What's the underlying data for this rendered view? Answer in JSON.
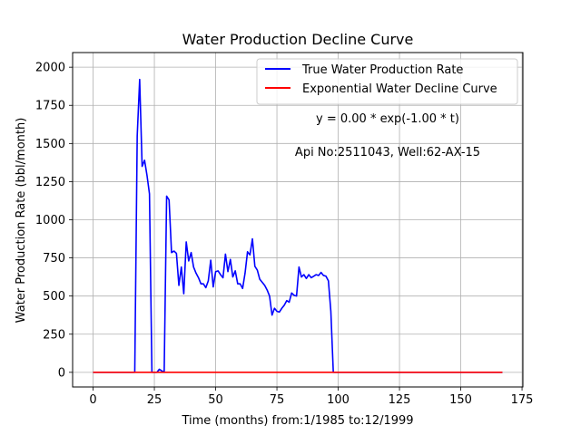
{
  "chart_data": {
    "type": "line",
    "title": "Water Production Decline Curve",
    "xlabel": "Time (months) from:1/1985 to:12/1999",
    "ylabel": "Water Production Rate (bbl/month)",
    "xlim": [
      -8.35,
      175.35
    ],
    "ylim": [
      -96,
      2096
    ],
    "xticks": [
      0,
      25,
      50,
      75,
      100,
      125,
      150,
      175
    ],
    "yticks": [
      0,
      250,
      500,
      750,
      1000,
      1250,
      1500,
      1750,
      2000
    ],
    "grid": true,
    "legend_position": "top-right",
    "annotations": [
      "y = 0.00 * exp(-1.00 * t)",
      "Api No:2511043, Well:62-AX-15"
    ],
    "series": [
      {
        "name": "True Water Production Rate",
        "color": "#0000ff",
        "points": [
          [
            0,
            0
          ],
          [
            1,
            0
          ],
          [
            2,
            0
          ],
          [
            3,
            0
          ],
          [
            4,
            0
          ],
          [
            5,
            0
          ],
          [
            6,
            0
          ],
          [
            7,
            0
          ],
          [
            8,
            0
          ],
          [
            9,
            0
          ],
          [
            10,
            0
          ],
          [
            11,
            0
          ],
          [
            12,
            0
          ],
          [
            13,
            0
          ],
          [
            14,
            0
          ],
          [
            15,
            0
          ],
          [
            16,
            0
          ],
          [
            17,
            0
          ],
          [
            18,
            1550
          ],
          [
            19,
            1920
          ],
          [
            20,
            1350
          ],
          [
            21,
            1390
          ],
          [
            22,
            1290
          ],
          [
            23,
            1170
          ],
          [
            24,
            0
          ],
          [
            25,
            0
          ],
          [
            26,
            0
          ],
          [
            27,
            20
          ],
          [
            28,
            10
          ],
          [
            29,
            0
          ],
          [
            30,
            1155
          ],
          [
            31,
            1130
          ],
          [
            32,
            785
          ],
          [
            33,
            795
          ],
          [
            34,
            780
          ],
          [
            35,
            570
          ],
          [
            36,
            690
          ],
          [
            37,
            515
          ],
          [
            38,
            855
          ],
          [
            39,
            730
          ],
          [
            40,
            785
          ],
          [
            41,
            690
          ],
          [
            42,
            650
          ],
          [
            43,
            620
          ],
          [
            44,
            580
          ],
          [
            45,
            580
          ],
          [
            46,
            555
          ],
          [
            47,
            600
          ],
          [
            48,
            735
          ],
          [
            49,
            560
          ],
          [
            50,
            660
          ],
          [
            51,
            665
          ],
          [
            52,
            640
          ],
          [
            53,
            620
          ],
          [
            54,
            775
          ],
          [
            55,
            660
          ],
          [
            56,
            740
          ],
          [
            57,
            625
          ],
          [
            58,
            665
          ],
          [
            59,
            580
          ],
          [
            60,
            580
          ],
          [
            61,
            550
          ],
          [
            62,
            650
          ],
          [
            63,
            790
          ],
          [
            64,
            770
          ],
          [
            65,
            875
          ],
          [
            66,
            695
          ],
          [
            67,
            670
          ],
          [
            68,
            610
          ],
          [
            69,
            590
          ],
          [
            70,
            570
          ],
          [
            71,
            540
          ],
          [
            72,
            500
          ],
          [
            73,
            375
          ],
          [
            74,
            420
          ],
          [
            75,
            400
          ],
          [
            76,
            395
          ],
          [
            77,
            420
          ],
          [
            78,
            440
          ],
          [
            79,
            470
          ],
          [
            80,
            460
          ],
          [
            81,
            520
          ],
          [
            82,
            505
          ],
          [
            83,
            500
          ],
          [
            84,
            690
          ],
          [
            85,
            625
          ],
          [
            86,
            640
          ],
          [
            87,
            615
          ],
          [
            88,
            640
          ],
          [
            89,
            620
          ],
          [
            90,
            630
          ],
          [
            91,
            640
          ],
          [
            92,
            635
          ],
          [
            93,
            655
          ],
          [
            94,
            635
          ],
          [
            95,
            630
          ],
          [
            96,
            600
          ],
          [
            97,
            400
          ],
          [
            98,
            0
          ],
          [
            99,
            0
          ],
          [
            100,
            0
          ],
          [
            110,
            0
          ],
          [
            120,
            0
          ],
          [
            130,
            0
          ],
          [
            140,
            0
          ],
          [
            150,
            0
          ],
          [
            160,
            0
          ],
          [
            167,
            0
          ]
        ]
      },
      {
        "name": "Exponential Water Decline Curve",
        "color": "#ff0000",
        "points": [
          [
            0,
            0
          ],
          [
            167,
            0
          ]
        ]
      }
    ]
  }
}
